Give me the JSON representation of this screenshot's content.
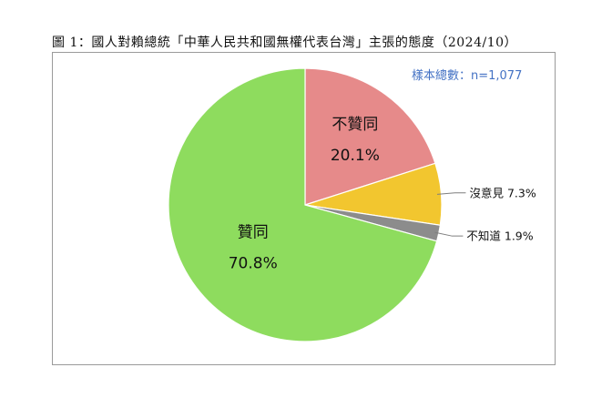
{
  "chart_data": {
    "type": "pie",
    "title": "圖 1：國人對賴總統「中華人民共和國無權代表台灣」主張的態度（2024/10）",
    "sample_note": "樣本總數：n=1,077",
    "slices": [
      {
        "label": "不贊同",
        "value": 20.1,
        "value_text": "20.1%",
        "color": "#e68a8a",
        "label_position": "inside"
      },
      {
        "label": "沒意見",
        "value": 7.3,
        "value_text": "7.3%",
        "color": "#f2c62f",
        "label_position": "outside"
      },
      {
        "label": "不知道",
        "value": 1.9,
        "value_text": "1.9%",
        "color": "#8c8c8c",
        "label_position": "outside"
      },
      {
        "label": "贊同",
        "value": 70.8,
        "value_text": "70.8%",
        "color": "#8edc5e",
        "label_position": "inside"
      }
    ],
    "start_angle": "12 o'clock",
    "direction": "clockwise",
    "slice_border_color": "#ffffff"
  }
}
